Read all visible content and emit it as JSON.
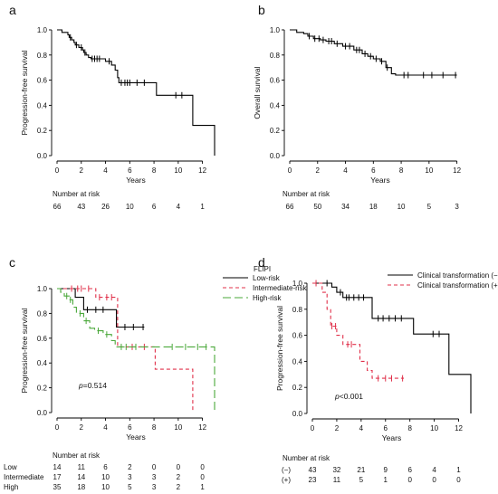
{
  "risk_table_title": "Number at risk",
  "chart_data": [
    {
      "type": "line",
      "panel_label": "a",
      "xlabel": "Years",
      "ylabel": "Progression-free survival",
      "xlim": [
        0,
        13
      ],
      "ylim": [
        0,
        1
      ],
      "xticks": [
        0,
        2,
        4,
        6,
        8,
        10,
        12
      ],
      "yticks": [
        0.0,
        0.2,
        0.4,
        0.6,
        0.8,
        1.0
      ],
      "ytick_labels": [
        "0.0",
        "0.2",
        "0.4",
        "0.6",
        "0.8",
        "1.0"
      ],
      "grid": false,
      "series": [
        {
          "color": "#000000",
          "dash": "",
          "steps": [
            [
              0,
              1.0
            ],
            [
              0.4,
              0.98
            ],
            [
              0.9,
              0.96
            ],
            [
              1.0,
              0.94
            ],
            [
              1.2,
              0.92
            ],
            [
              1.4,
              0.9
            ],
            [
              1.5,
              0.88
            ],
            [
              1.8,
              0.86
            ],
            [
              2.1,
              0.84
            ],
            [
              2.2,
              0.82
            ],
            [
              2.4,
              0.8
            ],
            [
              2.6,
              0.78
            ],
            [
              2.8,
              0.77
            ],
            [
              4.0,
              0.75
            ],
            [
              4.5,
              0.72
            ],
            [
              4.8,
              0.68
            ],
            [
              5.0,
              0.62
            ],
            [
              5.1,
              0.58
            ],
            [
              8.2,
              0.48
            ],
            [
              11.2,
              0.24
            ],
            [
              13.0,
              0.0
            ]
          ],
          "end": 13.0,
          "censors": [
            1.1,
            1.6,
            2.0,
            2.3,
            2.9,
            3.1,
            3.3,
            3.5,
            4.3,
            5.3,
            5.6,
            5.8,
            6.0,
            6.6,
            7.2,
            9.8,
            10.3
          ]
        }
      ],
      "risk": {
        "label_cols": [],
        "rows": [
          {
            "label": "",
            "values": [
              66,
              43,
              26,
              10,
              6,
              4,
              1
            ]
          }
        ]
      }
    },
    {
      "type": "line",
      "panel_label": "b",
      "xlabel": "Years",
      "ylabel": "Overall survival",
      "xlim": [
        0,
        13
      ],
      "ylim": [
        0,
        1
      ],
      "xticks": [
        0,
        2,
        4,
        6,
        8,
        10,
        12
      ],
      "yticks": [
        0.0,
        0.2,
        0.4,
        0.6,
        0.8,
        1.0
      ],
      "ytick_labels": [
        "0.0",
        "0.2",
        "0.4",
        "0.6",
        "0.8",
        "1.0"
      ],
      "grid": false,
      "series": [
        {
          "color": "#000000",
          "dash": "",
          "steps": [
            [
              0,
              1.0
            ],
            [
              0.5,
              0.98
            ],
            [
              1.0,
              0.97
            ],
            [
              1.3,
              0.95
            ],
            [
              1.7,
              0.93
            ],
            [
              2.2,
              0.92
            ],
            [
              2.6,
              0.91
            ],
            [
              3.2,
              0.89
            ],
            [
              3.8,
              0.87
            ],
            [
              4.6,
              0.84
            ],
            [
              5.2,
              0.81
            ],
            [
              5.6,
              0.79
            ],
            [
              6.0,
              0.77
            ],
            [
              6.5,
              0.75
            ],
            [
              6.9,
              0.7
            ],
            [
              7.3,
              0.65
            ],
            [
              7.6,
              0.64
            ]
          ],
          "end": 12.0,
          "censors": [
            1.4,
            1.8,
            2.1,
            2.4,
            2.8,
            3.0,
            3.4,
            4.0,
            4.3,
            4.8,
            5.0,
            5.4,
            5.8,
            6.2,
            6.6,
            7.0,
            8.2,
            8.5,
            9.6,
            10.2,
            11.0,
            11.9
          ]
        }
      ],
      "risk": {
        "label_cols": [],
        "rows": [
          {
            "label": "",
            "values": [
              66,
              50,
              34,
              18,
              10,
              5,
              3
            ]
          }
        ]
      }
    },
    {
      "type": "line",
      "panel_label": "c",
      "xlabel": "Years",
      "ylabel": "Progression-free survival",
      "xlim": [
        0,
        13
      ],
      "ylim": [
        0,
        1
      ],
      "xticks": [
        0,
        2,
        4,
        6,
        8,
        10,
        12
      ],
      "yticks": [
        0.0,
        0.2,
        0.4,
        0.6,
        0.8,
        1.0
      ],
      "ytick_labels": [
        "0.0",
        "0.2",
        "0.4",
        "0.6",
        "0.8",
        "1.0"
      ],
      "grid": false,
      "legend_title": "FLIPI",
      "legend_position": "top-right",
      "p_label": "p",
      "p_value": "=0.514",
      "series": [
        {
          "name": "Low-risk",
          "color": "#000000",
          "dash": "",
          "steps": [
            [
              0,
              1.0
            ],
            [
              1.5,
              0.93
            ],
            [
              2.2,
              0.83
            ],
            [
              4.9,
              0.69
            ]
          ],
          "end": 7.2,
          "censors": [
            2.5,
            3.2,
            3.8,
            5.6,
            6.3,
            7.1
          ]
        },
        {
          "name": "Intermediate-risk",
          "color": "#e0304a",
          "dash": "4,3",
          "steps": [
            [
              0,
              1.0
            ],
            [
              3.2,
              0.93
            ],
            [
              5.0,
              0.53
            ],
            [
              8.0,
              0.53
            ],
            [
              8.1,
              0.35
            ],
            [
              11.2,
              0.0
            ]
          ],
          "end": 11.2,
          "censors": [
            1.2,
            1.7,
            2.0,
            2.6,
            3.5,
            4.1,
            4.5,
            6.2,
            7.2
          ]
        },
        {
          "name": "High-risk",
          "color": "#4aa83a",
          "dash": "9,4",
          "steps": [
            [
              0,
              1.0
            ],
            [
              0.3,
              0.97
            ],
            [
              0.6,
              0.94
            ],
            [
              1.0,
              0.91
            ],
            [
              1.3,
              0.85
            ],
            [
              1.6,
              0.8
            ],
            [
              2.2,
              0.74
            ],
            [
              2.7,
              0.68
            ],
            [
              3.1,
              0.66
            ],
            [
              3.8,
              0.63
            ],
            [
              4.5,
              0.58
            ],
            [
              4.8,
              0.53
            ],
            [
              13.0,
              0.0
            ]
          ],
          "end": 13.0,
          "censors": [
            0.8,
            1.1,
            1.9,
            2.4,
            3.4,
            4.1,
            5.3,
            5.7,
            6.5,
            9.5,
            10.6,
            11.6,
            12.3
          ]
        }
      ],
      "risk": {
        "label_cols": [
          "Low",
          "Intermediate",
          "High"
        ],
        "rows": [
          {
            "label": "Low",
            "values": [
              14,
              11,
              6,
              2,
              0,
              0,
              0
            ]
          },
          {
            "label": "Intermediate",
            "values": [
              17,
              14,
              10,
              3,
              3,
              2,
              0
            ]
          },
          {
            "label": "High",
            "values": [
              35,
              18,
              10,
              5,
              3,
              2,
              1
            ]
          }
        ]
      }
    },
    {
      "type": "line",
      "panel_label": "d",
      "xlabel": "Years",
      "ylabel": "Progression-free survival",
      "xlim": [
        0,
        13
      ],
      "ylim": [
        0,
        1
      ],
      "xticks": [
        0,
        2,
        4,
        6,
        8,
        10,
        12
      ],
      "yticks": [
        0.0,
        0.2,
        0.4,
        0.6,
        0.8,
        1.0
      ],
      "ytick_labels": [
        "0.0",
        "0.2",
        "0.4",
        "0.6",
        "0.8",
        "1.0"
      ],
      "grid": false,
      "legend_position": "top-right",
      "p_label": "p",
      "p_value": "<0.001",
      "series": [
        {
          "name": "Clinical transformation (−)",
          "color": "#000000",
          "dash": "",
          "steps": [
            [
              0,
              1.0
            ],
            [
              1.6,
              0.97
            ],
            [
              2.0,
              0.93
            ],
            [
              2.5,
              0.89
            ],
            [
              4.9,
              0.73
            ],
            [
              8.3,
              0.61
            ],
            [
              11.2,
              0.3
            ],
            [
              13.0,
              0.0
            ]
          ],
          "end": 13.0,
          "censors": [
            1.2,
            2.3,
            2.8,
            3.0,
            3.4,
            3.8,
            4.2,
            5.4,
            5.8,
            6.3,
            6.8,
            7.3,
            9.9,
            10.4
          ]
        },
        {
          "name": "Clinical transformation (+)",
          "color": "#e0304a",
          "dash": "4,3",
          "steps": [
            [
              0,
              1.0
            ],
            [
              0.8,
              0.93
            ],
            [
              1.2,
              0.8
            ],
            [
              1.5,
              0.67
            ],
            [
              2.0,
              0.6
            ],
            [
              2.5,
              0.53
            ],
            [
              3.9,
              0.4
            ],
            [
              4.5,
              0.33
            ],
            [
              4.9,
              0.27
            ]
          ],
          "end": 7.5,
          "censors": [
            0.3,
            1.6,
            1.9,
            2.9,
            3.2,
            5.4,
            6.0,
            6.5,
            7.4
          ]
        }
      ],
      "risk": {
        "label_cols": [
          "(−)",
          "(+)"
        ],
        "rows": [
          {
            "label": "(−)",
            "values": [
              43,
              32,
              21,
              9,
              6,
              4,
              1
            ]
          },
          {
            "label": "(+)",
            "values": [
              23,
              11,
              5,
              1,
              0,
              0,
              0
            ]
          }
        ]
      }
    }
  ]
}
